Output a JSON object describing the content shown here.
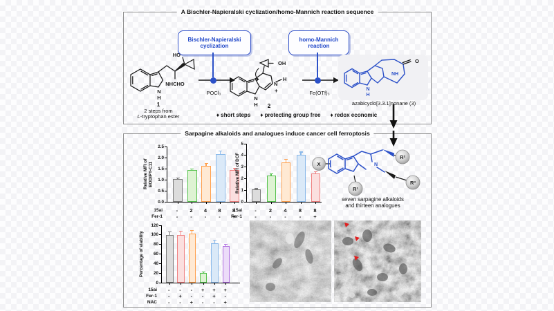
{
  "colors": {
    "accent_blue": "#2b50c8",
    "panel_border": "#8f8f8f",
    "red_marker": "#e01f1f",
    "product_box_bg": "#f1f1f4"
  },
  "section1": {
    "title": "A Bischler-Napieralski cyclization/homo-Mannich reaction sequence",
    "step1_box_line1": "Bischler-Napieralski",
    "step1_box_line2": "cyclization",
    "step2_box_line1": "homo-Mannich",
    "step2_box_line2": "reaction",
    "reagent1": "POCl₃",
    "reagent2": "Fe(OTf)₃",
    "compound1_number": "1",
    "compound1_caption1": "2 steps from",
    "compound1_caption2_prefix": "L",
    "compound1_caption2_rest": "-tryptophan ester",
    "compound2_number": "2",
    "product_caption": "azabicyclo[3.3.1]nonane (3)",
    "bullet1": "♦ short steps",
    "bullet2": "♦ protecting group free",
    "bullet3": "♦ redox economic",
    "atoms": {
      "ho": "HO",
      "nhcho": "NHCHO",
      "n": "N",
      "h": "H",
      "oh": "OH",
      "plus": "+",
      "nh": "NH",
      "o": "O"
    }
  },
  "section2": {
    "title": "Sarpagine alkaloids and analogues induce cancer cell ferroptosis",
    "scaffold_x": "X",
    "scaffold_r1": "R¹",
    "scaffold_r2": "R²",
    "scaffold_r3": "R³",
    "scaffold_n": "N",
    "scaffold_caption1": "seven sarpagine alkaloids",
    "scaffold_caption2": "and thirteen analogues"
  },
  "chart_data": [
    {
      "type": "bar",
      "ylabel": "Relative MFI of\nBODIPY-C11",
      "ylim": [
        0,
        2.5
      ],
      "yticks": [
        "0.0",
        "0.5",
        "1.0",
        "1.5",
        "2.0",
        "2.5"
      ],
      "values": [
        1.03,
        1.43,
        1.64,
        2.15,
        1.45
      ],
      "errors": [
        0.04,
        0.04,
        0.08,
        0.13,
        0.05
      ],
      "bar_styles": [
        {
          "stroke": "#7a7a7a",
          "fill": "#dcdcdc"
        },
        {
          "stroke": "#55c24d",
          "fill": "#def3d3"
        },
        {
          "stroke": "#ffa04d",
          "fill": "#ffe9d3"
        },
        {
          "stroke": "#8ab9ea",
          "fill": "#dae9f8"
        },
        {
          "stroke": "#f08080",
          "fill": "#fbdfdf"
        }
      ],
      "condition_rows": [
        {
          "label": "15ai",
          "cells": [
            "-",
            "2",
            "4",
            "8",
            "8"
          ]
        },
        {
          "label": "Fer-1",
          "cells": [
            "-",
            "-",
            "-",
            "-",
            "+"
          ]
        }
      ],
      "grid": false,
      "legend_position": "none"
    },
    {
      "type": "bar",
      "ylabel": "Relative MFI of DCF",
      "ylim": [
        0,
        5
      ],
      "yticks": [
        "0",
        "1",
        "2",
        "3",
        "4",
        "5"
      ],
      "values": [
        1.05,
        2.25,
        3.4,
        4.05,
        2.45
      ],
      "errors": [
        0.05,
        0.12,
        0.25,
        0.2,
        0.1
      ],
      "bar_styles": [
        {
          "stroke": "#7a7a7a",
          "fill": "#dcdcdc"
        },
        {
          "stroke": "#55c24d",
          "fill": "#def3d3"
        },
        {
          "stroke": "#ffa04d",
          "fill": "#ffe9d3"
        },
        {
          "stroke": "#8ab9ea",
          "fill": "#dae9f8"
        },
        {
          "stroke": "#f08080",
          "fill": "#fbdfdf"
        }
      ],
      "condition_rows": [
        {
          "label": "15ai",
          "cells": [
            "-",
            "2",
            "4",
            "8",
            "8"
          ]
        },
        {
          "label": "Fer-1",
          "cells": [
            "-",
            "-",
            "-",
            "-",
            "+"
          ]
        }
      ],
      "grid": false,
      "legend_position": "none"
    },
    {
      "type": "bar",
      "ylabel": "Percentage of viability",
      "ylim": [
        0,
        120
      ],
      "yticks": [
        "0",
        "20",
        "40",
        "60",
        "80",
        "100",
        "120"
      ],
      "values": [
        100,
        100,
        102,
        20,
        82,
        76
      ],
      "errors": [
        5,
        7,
        6,
        2,
        6,
        3
      ],
      "bar_styles": [
        {
          "stroke": "#7a7a7a",
          "fill": "#dcdcdc"
        },
        {
          "stroke": "#f08080",
          "fill": "#fbdfdf"
        },
        {
          "stroke": "#ffa04d",
          "fill": "#ffe9d3"
        },
        {
          "stroke": "#55c24d",
          "fill": "#def3d3"
        },
        {
          "stroke": "#8ab9ea",
          "fill": "#dae9f8"
        },
        {
          "stroke": "#b06fe0",
          "fill": "#ecdcf9"
        }
      ],
      "condition_rows": [
        {
          "label": "15ai",
          "cells": [
            "-",
            "-",
            "-",
            "+",
            "+",
            "+"
          ]
        },
        {
          "label": "Fer-1",
          "cells": [
            "-",
            "+",
            "-",
            "-",
            "+",
            "-"
          ]
        },
        {
          "label": "NAC",
          "cells": [
            "-",
            "-",
            "+",
            "-",
            "-",
            "+"
          ]
        }
      ],
      "grid": false,
      "legend_position": "none"
    }
  ]
}
